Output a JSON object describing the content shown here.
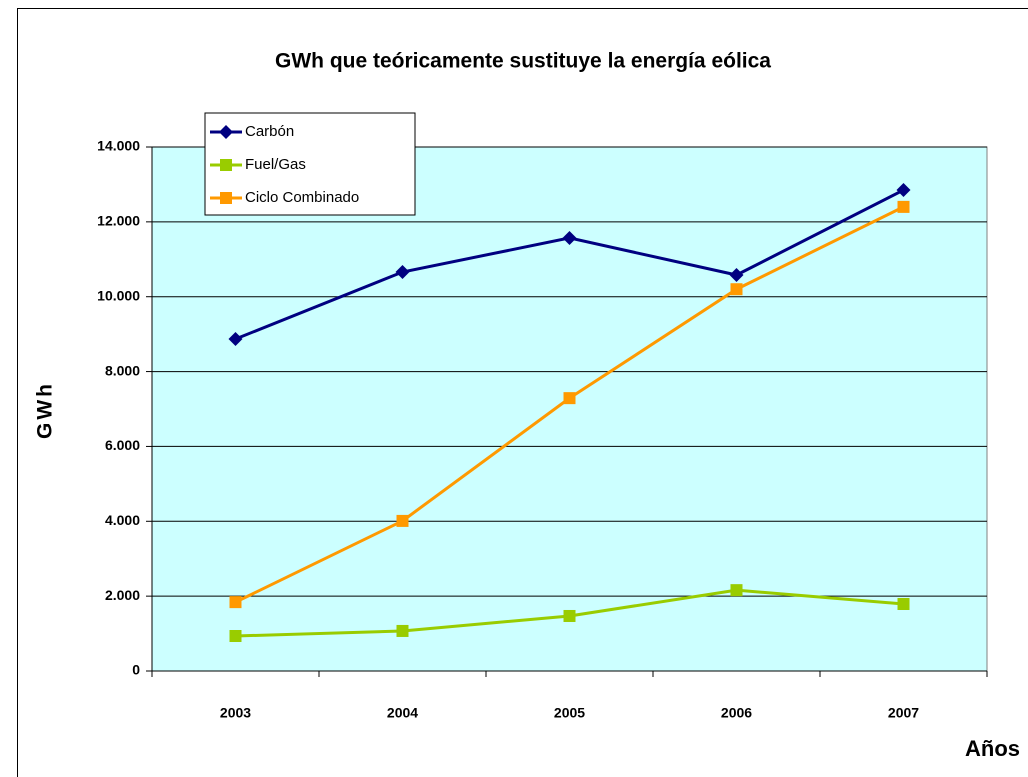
{
  "chart_data": {
    "type": "line",
    "title": "GWh que teóricamente sustituye la energía eólica",
    "x_label": "Años",
    "y_label": "GWh",
    "categories": [
      "2003",
      "2004",
      "2005",
      "2006",
      "2007"
    ],
    "series": [
      {
        "name": "Carbón",
        "color": "#000080",
        "marker": "diamond",
        "values": [
          8870,
          10660,
          11570,
          10580,
          12850
        ]
      },
      {
        "name": "Fuel/Gas",
        "color": "#99cc00",
        "marker": "square",
        "values": [
          935,
          1070,
          1470,
          2160,
          1790
        ]
      },
      {
        "name": "Ciclo Combinado",
        "color": "#ff9900",
        "marker": "square",
        "values": [
          1840,
          4010,
          7290,
          10200,
          12400
        ]
      }
    ],
    "ylim": [
      0,
      14000
    ],
    "yticks": [
      0,
      {
        "value": 2000,
        "label": "2.000"
      },
      {
        "value": 4000,
        "label": "4.000"
      },
      {
        "value": 6000,
        "label": "6.000"
      },
      {
        "value": 8000,
        "label": "8.000"
      },
      {
        "value": 10000,
        "label": "10.000"
      },
      {
        "value": 12000,
        "label": "12.000"
      },
      {
        "value": 14000,
        "label": "14.000"
      }
    ],
    "grid": true,
    "plot_background": "#ccffff",
    "legend": "upper left"
  }
}
